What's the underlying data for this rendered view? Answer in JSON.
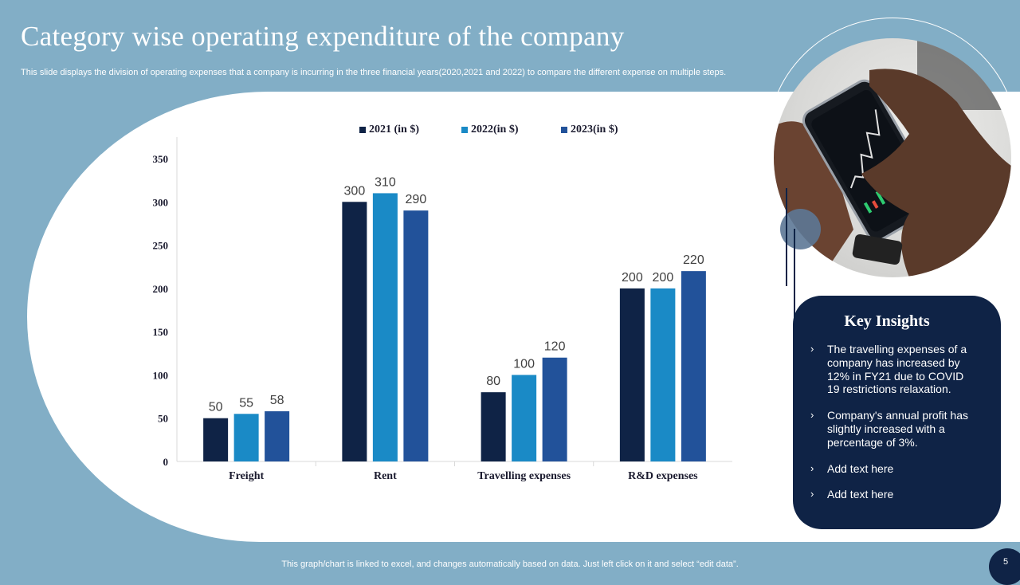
{
  "slide": {
    "title": "Category wise operating expenditure of the company",
    "subtitle": "This slide displays the division of operating expenses that a company is incurring  in the three financial years(2020,2021 and 2022) to compare the different expense on multiple steps.",
    "footer_note": "This graph/chart is linked to excel,  and changes automatically based on data. Just left click on it and select “edit data”.",
    "page_number": "5"
  },
  "chart_data": {
    "type": "bar",
    "title": "",
    "xlabel": "",
    "ylabel": "",
    "categories": [
      "Freight",
      "Rent",
      "Travelling expenses",
      "R&D expenses"
    ],
    "series": [
      {
        "name": "2021 (in $)",
        "values": [
          50,
          300,
          80,
          200
        ],
        "color": "#0f2346"
      },
      {
        "name": "2022(in $)",
        "values": [
          55,
          310,
          100,
          200
        ],
        "color": "#1a8ac6"
      },
      {
        "name": "2023(in $)",
        "values": [
          58,
          290,
          120,
          220
        ],
        "color": "#22529a"
      }
    ],
    "ylim": [
      0,
      350
    ],
    "yticks": [
      0,
      50,
      100,
      150,
      200,
      250,
      300,
      350
    ],
    "grid": false,
    "legend_position": "top"
  },
  "insights": {
    "title": "Key Insights",
    "items": [
      "The travelling expenses of a company has increased by 12% in FY21 due to COVID 19 restrictions relaxation.",
      "Company's annual profit has slightly increased with a percentage of 3%.",
      "Add text here",
      "Add text here"
    ],
    "bullet": "›"
  },
  "image": {
    "icon": "hand-holding-smartphone-trading-chart-photo"
  }
}
